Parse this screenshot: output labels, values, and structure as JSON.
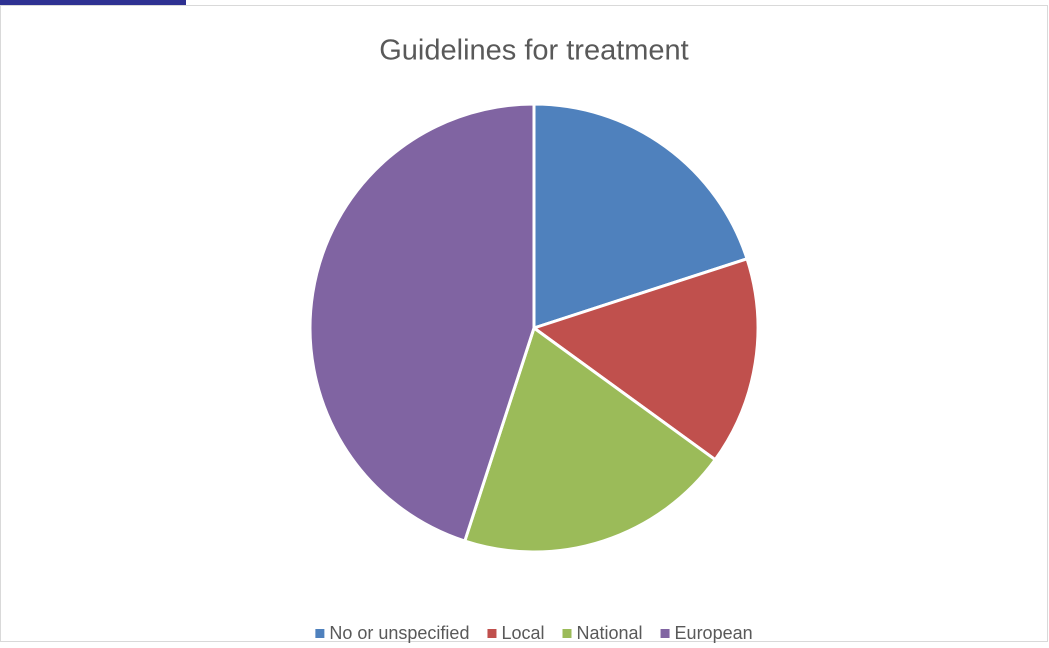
{
  "chart_data": {
    "type": "pie",
    "title": "Guidelines for treatment",
    "categories": [
      "No or unspecified",
      "Local",
      "National",
      "European"
    ],
    "values": [
      20,
      15,
      20,
      45
    ],
    "colors": [
      "#4f81bd",
      "#c0504d",
      "#9bbb59",
      "#8064a2"
    ],
    "legend": "bottom"
  }
}
